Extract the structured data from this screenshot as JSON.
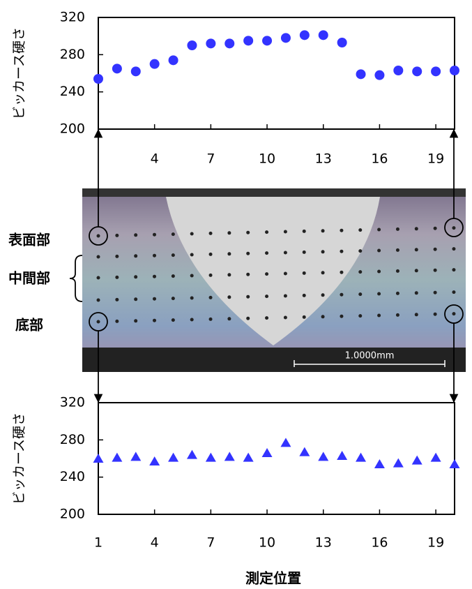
{
  "chart_data": [
    {
      "type": "scatter",
      "ylabel": "ビッカース硬さ",
      "marker": "circle",
      "color": "#3333ff",
      "x": [
        1,
        2,
        3,
        4,
        5,
        6,
        7,
        8,
        9,
        10,
        11,
        12,
        13,
        14,
        15,
        16,
        17,
        18,
        19,
        20
      ],
      "values": [
        254,
        265,
        262,
        270,
        274,
        290,
        292,
        292,
        295,
        295,
        298,
        301,
        301,
        293,
        259,
        258,
        263,
        262,
        262,
        263
      ],
      "xlim": [
        1,
        20
      ],
      "xticks": [
        4,
        7,
        10,
        13,
        16,
        19
      ],
      "ylim": [
        200,
        320
      ],
      "yticks": [
        200,
        240,
        280,
        320
      ]
    },
    {
      "type": "scatter",
      "ylabel": "ビッカース硬さ",
      "xlabel": "測定位置",
      "marker": "triangle",
      "color": "#3333ff",
      "x": [
        1,
        2,
        3,
        4,
        5,
        6,
        7,
        8,
        9,
        10,
        11,
        12,
        13,
        14,
        15,
        16,
        17,
        18,
        19,
        20
      ],
      "values": [
        260,
        261,
        262,
        257,
        261,
        264,
        261,
        262,
        261,
        266,
        277,
        267,
        262,
        263,
        261,
        254,
        255,
        258,
        261,
        254
      ],
      "xlim": [
        1,
        20
      ],
      "xticks": [
        1,
        4,
        7,
        10,
        13,
        16,
        19
      ],
      "ylim": [
        200,
        320
      ],
      "yticks": [
        200,
        240,
        280,
        320
      ]
    }
  ],
  "image": {
    "labels": [
      "表面部",
      "中間部",
      "底部"
    ],
    "scale_bar": "1.0000mm"
  }
}
